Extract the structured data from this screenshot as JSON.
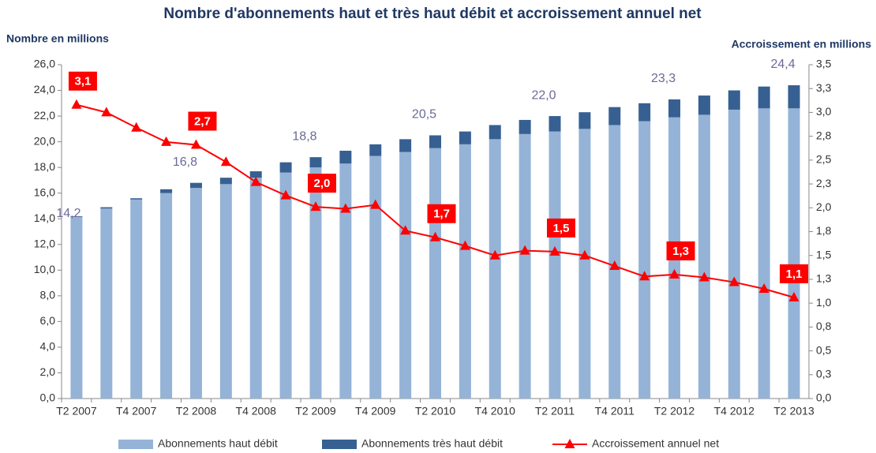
{
  "chart_data": {
    "type": "bar",
    "stacked": true,
    "title": "Nombre d'abonnements haut et très haut débit et accroissement annuel net",
    "y_label": "Nombre en millions",
    "y2_label": "Accroissement en millions",
    "categories": [
      "T2 2007",
      null,
      "T4 2007",
      null,
      "T2 2008",
      null,
      "T4 2008",
      null,
      "T2 2009",
      null,
      "T4 2009",
      null,
      "T2 2010",
      null,
      "T4 2010",
      null,
      "T2 2011",
      null,
      "T4 2011",
      null,
      "T2 2012",
      null,
      "T4 2012",
      null,
      "T2 2013"
    ],
    "series": [
      {
        "name": "Abonnements haut débit",
        "color": "#95b3d7",
        "values": [
          14.15,
          14.8,
          15.5,
          16.0,
          16.4,
          16.7,
          17.2,
          17.6,
          18.0,
          18.3,
          18.9,
          19.2,
          19.5,
          19.8,
          20.2,
          20.6,
          20.8,
          21.0,
          21.3,
          21.6,
          21.9,
          22.1,
          22.5,
          22.6,
          22.6
        ]
      },
      {
        "name": "Abonnements très haut débit",
        "color": "#376092",
        "values": [
          0.05,
          0.1,
          0.1,
          0.3,
          0.4,
          0.5,
          0.5,
          0.8,
          0.8,
          1.0,
          0.9,
          1.0,
          1.0,
          1.0,
          1.1,
          1.1,
          1.2,
          1.3,
          1.4,
          1.4,
          1.4,
          1.5,
          1.5,
          1.7,
          1.8
        ]
      },
      {
        "name": "Accroissement annuel net",
        "color": "#ff0000",
        "type": "line",
        "axis": "y2",
        "values": [
          3.08,
          3.0,
          2.84,
          2.69,
          2.66,
          2.48,
          2.27,
          2.13,
          2.01,
          1.99,
          2.03,
          1.76,
          1.69,
          1.6,
          1.5,
          1.55,
          1.54,
          1.5,
          1.39,
          1.28,
          1.3,
          1.27,
          1.22,
          1.15,
          1.06
        ],
        "value_labels": [
          "3,1",
          null,
          null,
          null,
          "2,7",
          null,
          null,
          null,
          "2,0",
          null,
          null,
          null,
          "1,7",
          null,
          null,
          null,
          "1,5",
          null,
          null,
          null,
          "1,3",
          null,
          null,
          null,
          "1,1"
        ]
      }
    ],
    "total_labels": [
      "14,2",
      null,
      null,
      null,
      "16,8",
      null,
      null,
      null,
      "18,8",
      null,
      null,
      null,
      "20,5",
      null,
      null,
      null,
      "22,0",
      null,
      null,
      null,
      "23,3",
      null,
      null,
      null,
      "24,4"
    ],
    "ylim": [
      0,
      26
    ],
    "yticks": [
      {
        "value": 0,
        "label": "0,0"
      },
      {
        "value": 2,
        "label": "2,0"
      },
      {
        "value": 4,
        "label": "4,0"
      },
      {
        "value": 6,
        "label": "6,0"
      },
      {
        "value": 8,
        "label": "8,0"
      },
      {
        "value": 10,
        "label": "10,0"
      },
      {
        "value": 12,
        "label": "12,0"
      },
      {
        "value": 14,
        "label": "14,0"
      },
      {
        "value": 16,
        "label": "16,0"
      },
      {
        "value": 18,
        "label": "18,0"
      },
      {
        "value": 20,
        "label": "20,0"
      },
      {
        "value": 22,
        "label": "22,0"
      },
      {
        "value": 24,
        "label": "24,0"
      },
      {
        "value": 26,
        "label": "26,0"
      }
    ],
    "y2lim": [
      0,
      3.5
    ],
    "y2ticks": [
      {
        "value": 0,
        "label": "0,0"
      },
      {
        "value": 0.25,
        "label": "0,3"
      },
      {
        "value": 0.5,
        "label": "0,5"
      },
      {
        "value": 0.75,
        "label": "0,8"
      },
      {
        "value": 1,
        "label": "1,0"
      },
      {
        "value": 1.25,
        "label": "1,3"
      },
      {
        "value": 1.5,
        "label": "1,5"
      },
      {
        "value": 1.75,
        "label": "1,8"
      },
      {
        "value": 2,
        "label": "2,0"
      },
      {
        "value": 2.25,
        "label": "2,3"
      },
      {
        "value": 2.5,
        "label": "2,5"
      },
      {
        "value": 2.75,
        "label": "2,8"
      },
      {
        "value": 3,
        "label": "3,0"
      },
      {
        "value": 3.25,
        "label": "3,3"
      },
      {
        "value": 3.5,
        "label": "3,5"
      }
    ],
    "grid": false,
    "legend": "bottom"
  }
}
